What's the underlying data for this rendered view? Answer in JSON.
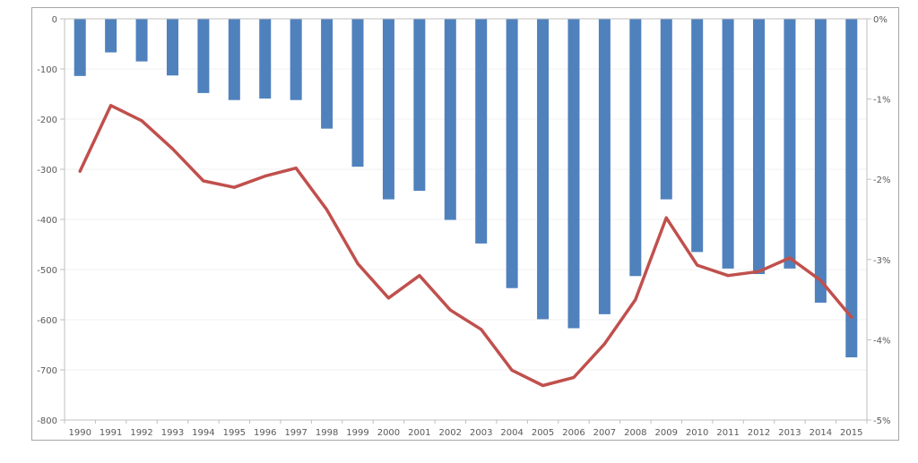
{
  "chart_data": {
    "type": "bar",
    "title": "",
    "xlabel": "",
    "ylabel": "",
    "y2label": "",
    "categories": [
      "1990",
      "1991",
      "1992",
      "1993",
      "1994",
      "1995",
      "1996",
      "1997",
      "1998",
      "1999",
      "2000",
      "2001",
      "2002",
      "2003",
      "2004",
      "2005",
      "2006",
      "2007",
      "2008",
      "2009",
      "2010",
      "2011",
      "2012",
      "2013",
      "2014",
      "2015"
    ],
    "ylim": [
      -800,
      0
    ],
    "y_ticks": [
      0,
      -100,
      -200,
      -300,
      -400,
      -500,
      -600,
      -700,
      -800
    ],
    "y2lim": [
      -5,
      0
    ],
    "y2_ticks": [
      0,
      -1,
      -2,
      -3,
      -4,
      -5
    ],
    "y2_tick_labels": [
      "0%",
      "-1%",
      "-2%",
      "-3%",
      "-4%",
      "-5%"
    ],
    "grid": true,
    "legend": "none",
    "series": [
      {
        "type": "bar",
        "axis": "left",
        "color": "#4f81bd",
        "values": [
          -114,
          -67,
          -85,
          -113,
          -148,
          -162,
          -159,
          -162,
          -219,
          -295,
          -360,
          -343,
          -401,
          -448,
          -537,
          -599,
          -617,
          -589,
          -513,
          -360,
          -465,
          -498,
          -509,
          -498,
          -566,
          -675
        ]
      },
      {
        "type": "line",
        "axis": "right",
        "color": "#c0504d",
        "values": [
          -1.9,
          -1.08,
          -1.27,
          -1.62,
          -2.02,
          -2.1,
          -1.96,
          -1.86,
          -2.38,
          -3.05,
          -3.48,
          -3.2,
          -3.63,
          -3.87,
          -4.38,
          -4.57,
          -4.47,
          -4.05,
          -3.5,
          -2.48,
          -3.07,
          -3.2,
          -3.15,
          -2.98,
          -3.26,
          -3.72
        ]
      }
    ]
  }
}
